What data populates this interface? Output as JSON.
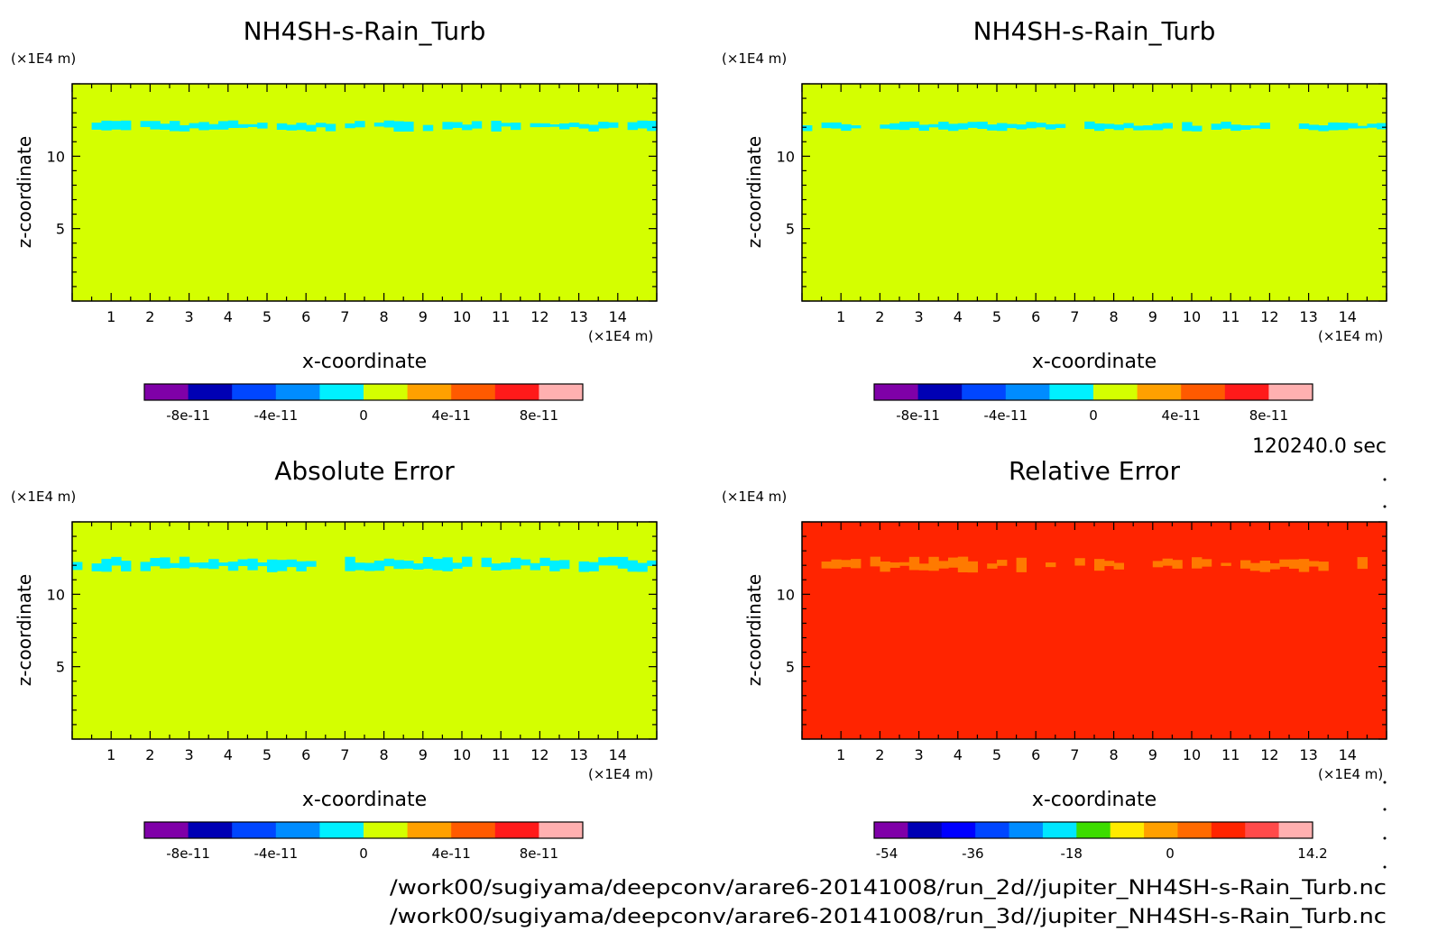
{
  "time_label": "120240.0 sec",
  "footer": {
    "line1": "/work00/sugiyama/deepconv/arare6-20141008/run_2d//jupiter_NH4SH-s-Rain_Turb.nc",
    "line2": "/work00/sugiyama/deepconv/arare6-20141008/run_3d//jupiter_NH4SH-s-Rain_Turb.nc"
  },
  "colors": {
    "background_field": "#d4ff00",
    "band": "#00f0ff",
    "relative_background": "#ff2400",
    "relative_band": "#ff7a00"
  },
  "chart_data": [
    {
      "type": "heatmap",
      "title": "NH4SH-s-Rain_Turb",
      "xlabel": "x-coordinate",
      "ylabel": "z-coordinate",
      "x_unit": "(×1E4 m)",
      "y_unit": "(×1E4 m)",
      "xlim": [
        0,
        15
      ],
      "ylim": [
        0,
        15
      ],
      "x_ticks": [
        1,
        2,
        3,
        4,
        5,
        6,
        7,
        8,
        9,
        10,
        11,
        12,
        13,
        14
      ],
      "y_ticks": [
        5,
        10
      ],
      "field_value": 0,
      "band_z_range": [
        11.7,
        12.5
      ],
      "band_value": -2e-11,
      "colorbar": {
        "colors": [
          "#7f00a8",
          "#0000b4",
          "#0046ff",
          "#008cff",
          "#00f0ff",
          "#d4ff00",
          "#ffa000",
          "#ff5a00",
          "#ff1a1a",
          "#ffb0b0"
        ],
        "tick_labels": [
          "-8e-11",
          "-4e-11",
          "0",
          "4e-11",
          "8e-11"
        ]
      }
    },
    {
      "type": "heatmap",
      "title": "NH4SH-s-Rain_Turb",
      "xlabel": "x-coordinate",
      "ylabel": "z-coordinate",
      "x_unit": "(×1E4 m)",
      "y_unit": "(×1E4 m)",
      "xlim": [
        0,
        15
      ],
      "ylim": [
        0,
        15
      ],
      "x_ticks": [
        1,
        2,
        3,
        4,
        5,
        6,
        7,
        8,
        9,
        10,
        11,
        12,
        13,
        14
      ],
      "y_ticks": [
        5,
        10
      ],
      "field_value": 0,
      "band_z_range": [
        11.7,
        12.4
      ],
      "band_value": -2e-11,
      "colorbar": {
        "colors": [
          "#7f00a8",
          "#0000b4",
          "#0046ff",
          "#008cff",
          "#00f0ff",
          "#d4ff00",
          "#ffa000",
          "#ff5a00",
          "#ff1a1a",
          "#ffb0b0"
        ],
        "tick_labels": [
          "-8e-11",
          "-4e-11",
          "0",
          "4e-11",
          "8e-11"
        ]
      }
    },
    {
      "type": "heatmap",
      "title": "Absolute Error",
      "xlabel": "x-coordinate",
      "ylabel": "z-coordinate",
      "x_unit": "(×1E4 m)",
      "y_unit": "(×1E4 m)",
      "xlim": [
        0,
        15
      ],
      "ylim": [
        0,
        15
      ],
      "x_ticks": [
        1,
        2,
        3,
        4,
        5,
        6,
        7,
        8,
        9,
        10,
        11,
        12,
        13,
        14
      ],
      "y_ticks": [
        5,
        10
      ],
      "field_value": 0,
      "band_z_range": [
        11.5,
        12.6
      ],
      "band_value": -2e-11,
      "colorbar": {
        "colors": [
          "#7f00a8",
          "#0000b4",
          "#0046ff",
          "#008cff",
          "#00f0ff",
          "#d4ff00",
          "#ffa000",
          "#ff5a00",
          "#ff1a1a",
          "#ffb0b0"
        ],
        "tick_labels": [
          "-8e-11",
          "-4e-11",
          "0",
          "4e-11",
          "8e-11"
        ]
      }
    },
    {
      "type": "heatmap",
      "title": "Relative Error",
      "xlabel": "x-coordinate",
      "ylabel": "z-coordinate",
      "x_unit": "(×1E4 m)",
      "y_unit": "(×1E4 m)",
      "xlim": [
        0,
        15
      ],
      "ylim": [
        0,
        15
      ],
      "x_ticks": [
        1,
        2,
        3,
        4,
        5,
        6,
        7,
        8,
        9,
        10,
        11,
        12,
        13,
        14
      ],
      "y_ticks": [
        5,
        10
      ],
      "field_value": 5,
      "band_z_range": [
        11.5,
        12.6
      ],
      "band_value": 0,
      "colorbar": {
        "colors": [
          "#7f00a8",
          "#0000b4",
          "#0000ff",
          "#0046ff",
          "#008cff",
          "#00e6ff",
          "#3cdc00",
          "#ffeb00",
          "#ffa000",
          "#ff6a00",
          "#ff2400",
          "#ff4a4a",
          "#ffb0b0"
        ],
        "tick_labels": [
          "-54",
          "-36",
          "-18",
          "0",
          "14.2"
        ]
      }
    }
  ]
}
